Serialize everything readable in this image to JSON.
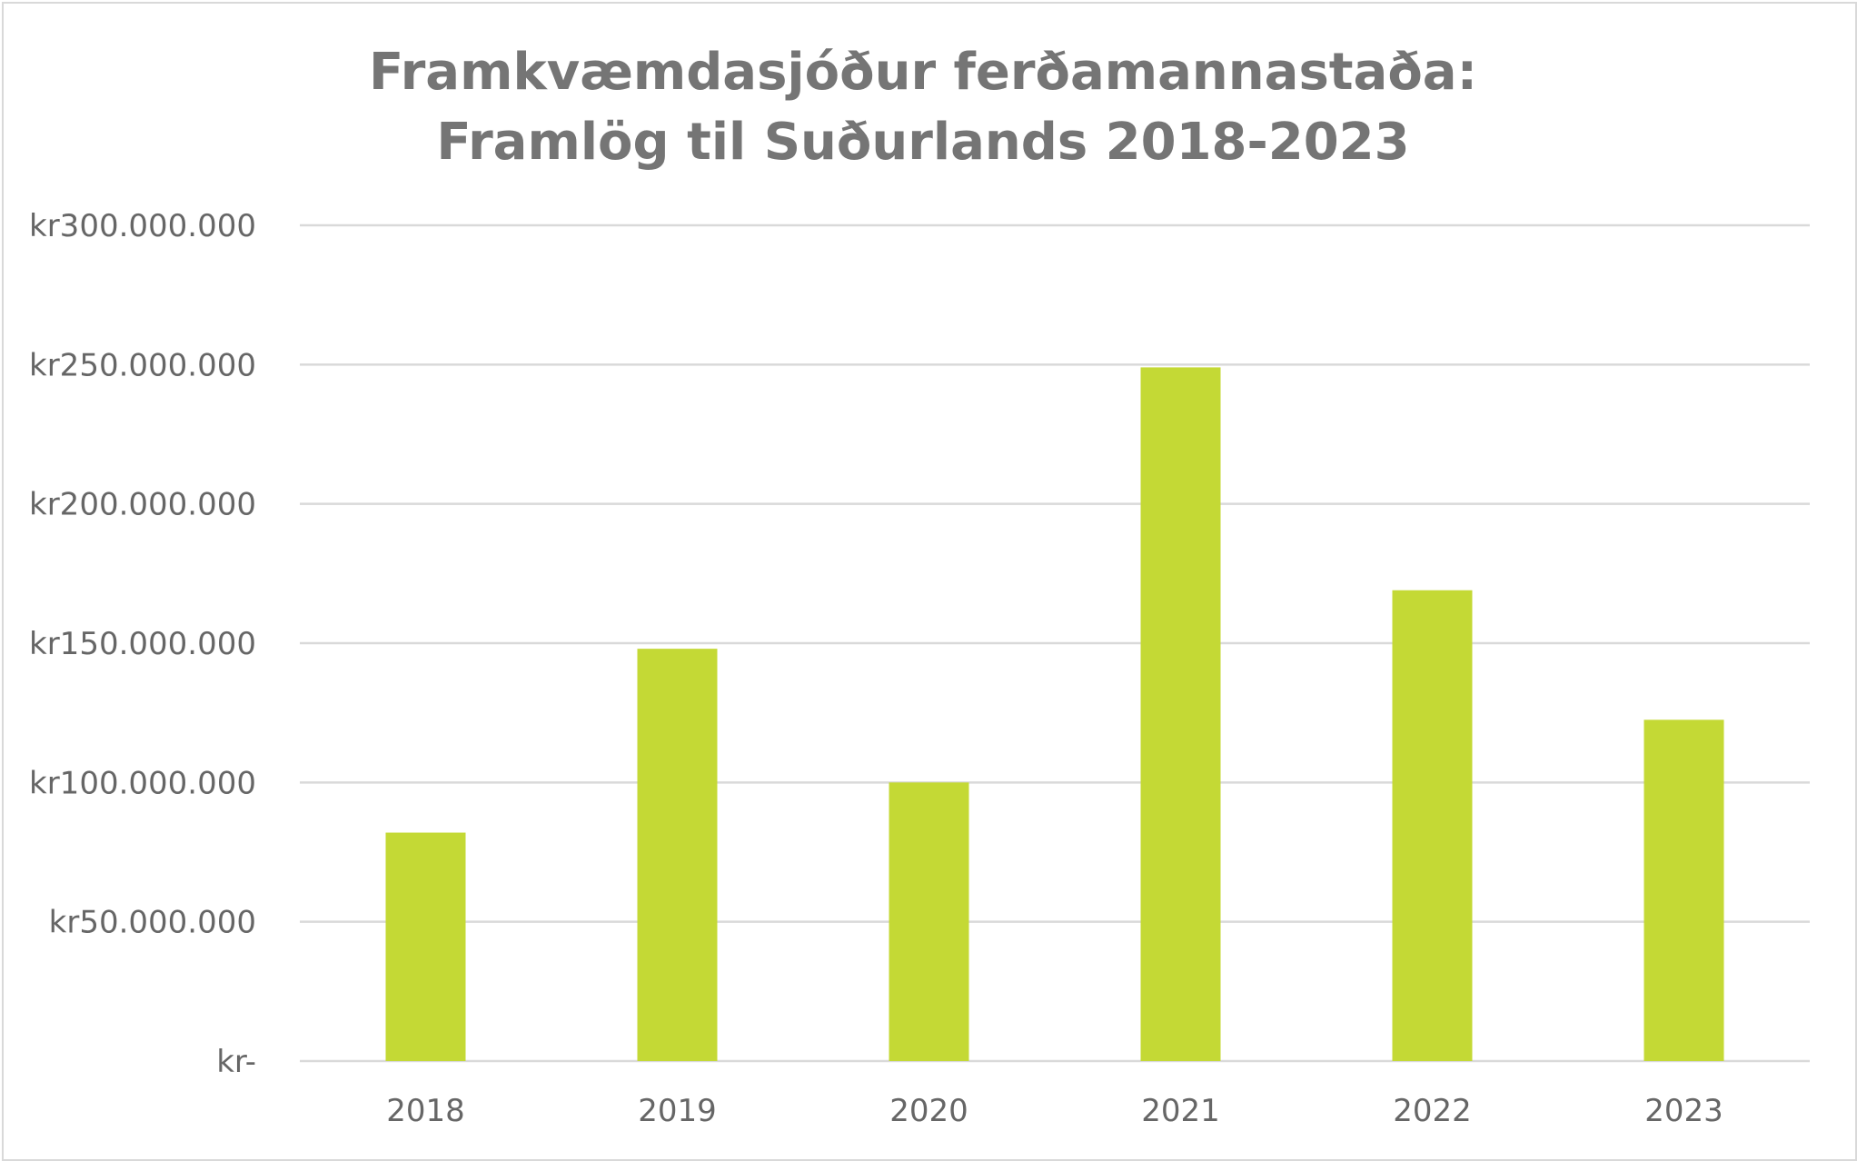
{
  "chart_data": {
    "type": "bar",
    "title_lines": [
      "Framkvæmdasjóður ferðamannastaða:",
      "Framlög til Suðurlands 2018-2023"
    ],
    "categories": [
      "2018",
      "2019",
      "2020",
      "2021",
      "2022",
      "2023"
    ],
    "values": [
      82000000,
      148000000,
      100000000,
      249000000,
      169000000,
      122500000
    ],
    "ylim": [
      0,
      300000000
    ],
    "y_ticks": [
      0,
      50000000,
      100000000,
      150000000,
      200000000,
      250000000,
      300000000
    ],
    "y_tick_labels": [
      "kr-",
      "kr50.000.000",
      "kr100.000.000",
      "kr150.000.000",
      "kr200.000.000",
      "kr250.000.000",
      "kr300.000.000"
    ],
    "xlabel": "",
    "ylabel": "",
    "grid": true,
    "legend": "none",
    "bar_color": "#c4d935"
  }
}
